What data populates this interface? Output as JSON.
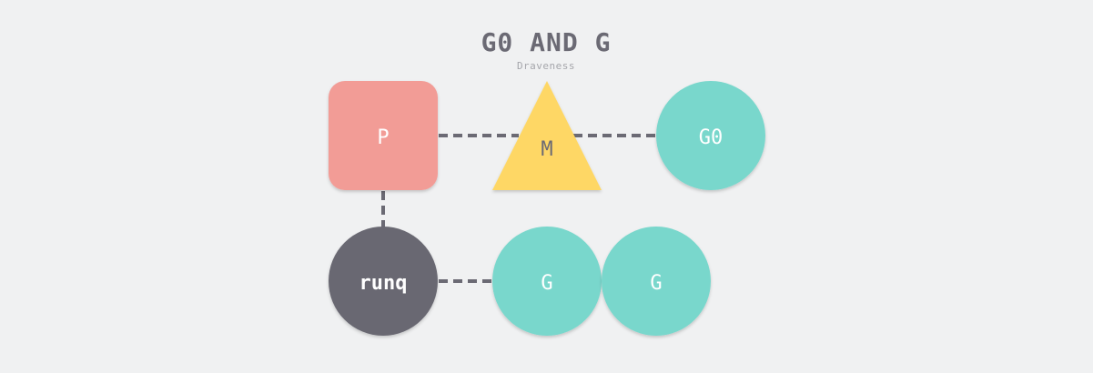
{
  "title": "G0 AND G",
  "author": "Draveness",
  "colors": {
    "background": "#f0f1f2",
    "p": "#f29c96",
    "m": "#fed765",
    "g": "#79d7cc",
    "runq": "#696872",
    "link": "#6b6a74"
  },
  "nodes": {
    "p": {
      "label": "P",
      "shape": "rounded-square"
    },
    "m": {
      "label": "M",
      "shape": "triangle"
    },
    "g0": {
      "label": "G0",
      "shape": "circle"
    },
    "runq": {
      "label": "runq",
      "shape": "circle"
    },
    "g1": {
      "label": "G",
      "shape": "circle"
    },
    "g2": {
      "label": "G",
      "shape": "circle"
    }
  },
  "links": [
    {
      "from": "p",
      "to": "m",
      "style": "dashed"
    },
    {
      "from": "m",
      "to": "g0",
      "style": "dashed"
    },
    {
      "from": "p",
      "to": "runq",
      "style": "dashed"
    },
    {
      "from": "runq",
      "to": "g1",
      "style": "dashed"
    }
  ]
}
